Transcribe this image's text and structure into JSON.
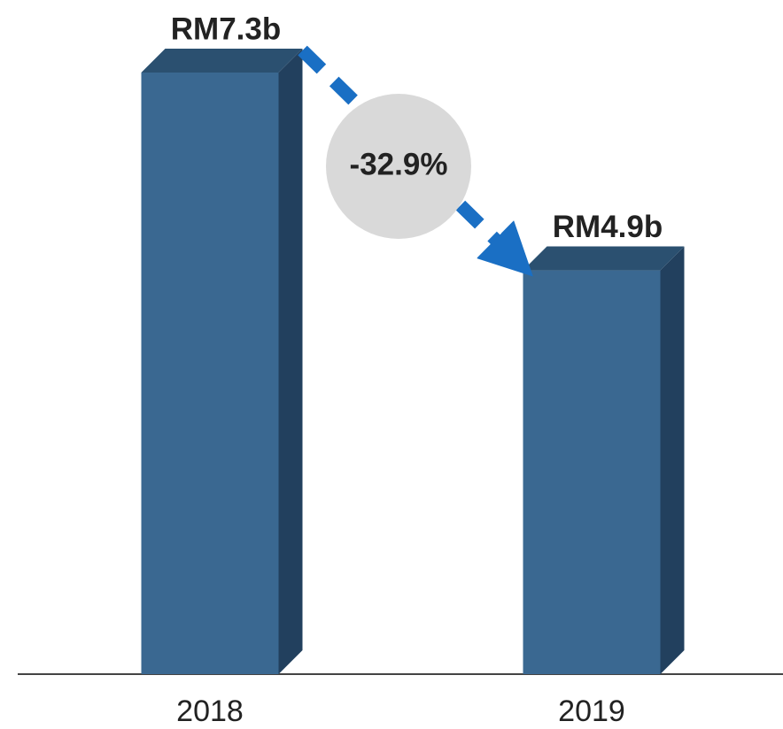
{
  "chart_data": {
    "type": "bar",
    "categories": [
      "2018",
      "2019"
    ],
    "values": [
      7.3,
      4.9
    ],
    "value_labels": [
      "RM7.3b",
      "RM4.9b"
    ],
    "color": "#3a6891",
    "annotation": "-32.9%"
  }
}
